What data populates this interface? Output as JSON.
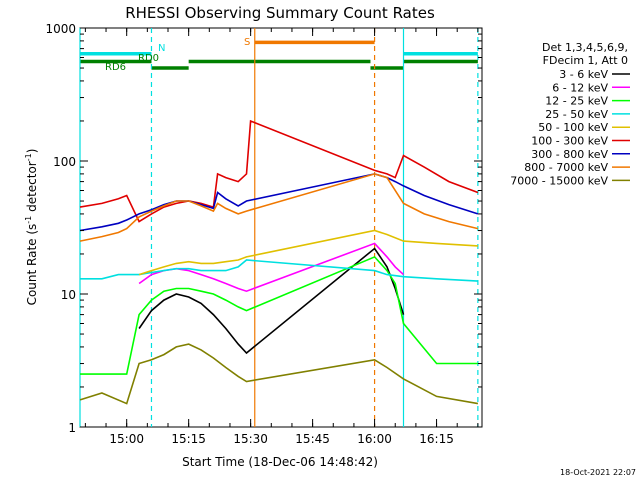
{
  "chart_data": {
    "type": "line",
    "title": "RHESSI Observing Summary Count Rates",
    "xlabel": "Start Time (18-Dec-06 14:48:42)",
    "ylabel_main": "Count Rate (s",
    "ylabel_sup1": "-1",
    "ylabel_mid": " detector",
    "ylabel_sup2": "-1",
    "ylabel_end": ")",
    "footer": "18-Oct-2021 22:07",
    "y_scale": "log",
    "ylim": [
      1,
      1000
    ],
    "xlim": [
      "14:48:42",
      "16:26:00"
    ],
    "y_ticks": [
      {
        "value": 1,
        "label": "1"
      },
      {
        "value": 10,
        "label": "10"
      },
      {
        "value": 100,
        "label": "100"
      },
      {
        "value": 1000,
        "label": "1000"
      }
    ],
    "x_ticks": [
      {
        "time": "15:00",
        "label": "15:00"
      },
      {
        "time": "15:15",
        "label": "15:15"
      },
      {
        "time": "15:30",
        "label": "15:30"
      },
      {
        "time": "15:45",
        "label": "15:45"
      },
      {
        "time": "16:00",
        "label": "16:00"
      },
      {
        "time": "16:15",
        "label": "16:15"
      }
    ],
    "legend_title": [
      "Det 1,3,4,5,6,9,",
      "FDecim 1, Att 0"
    ],
    "legend_placement": "right",
    "annotations": {
      "flag_N": "N",
      "flag_RD0": "RD0",
      "flag_RD6": "RD6",
      "flag_S": "S"
    },
    "vertical_lines": [
      {
        "time": "14:48:42",
        "color": "#00e0e0",
        "style": "solid"
      },
      {
        "time": "15:06",
        "color": "#00e0e0",
        "style": "dashed"
      },
      {
        "time": "15:31",
        "color": "#f07800",
        "style": "solid"
      },
      {
        "time": "16:00",
        "color": "#f07800",
        "style": "dashed"
      },
      {
        "time": "16:07",
        "color": "#00e0e0",
        "style": "solid"
      },
      {
        "time": "16:25",
        "color": "#00e0e0",
        "style": "dashed"
      }
    ],
    "flag_bars": [
      {
        "label": "N",
        "color": "#00e0e0",
        "y": 640,
        "segments": [
          [
            "14:48:42",
            "15:06"
          ],
          [
            "16:07",
            "16:25"
          ]
        ]
      },
      {
        "label": "RD0",
        "color": "#008000",
        "y": 560,
        "segments": [
          [
            "14:48:42",
            "15:06"
          ],
          [
            "15:15",
            "15:59"
          ],
          [
            "16:07",
            "16:25"
          ]
        ]
      },
      {
        "label": "RD6",
        "color": "#008000",
        "y": 500,
        "segments": [
          [
            "15:06",
            "15:15"
          ],
          [
            "15:59",
            "16:07"
          ]
        ]
      },
      {
        "label": "S",
        "color": "#f07800",
        "y": 780,
        "segments": [
          [
            "15:31",
            "16:00"
          ]
        ]
      }
    ],
    "series": [
      {
        "name": "3 - 6 keV",
        "color": "#000000",
        "points": [
          [
            "15:03",
            5.5
          ],
          [
            "15:06",
            7.5
          ],
          [
            "15:09",
            9
          ],
          [
            "15:12",
            10
          ],
          [
            "15:15",
            9.5
          ],
          [
            "15:18",
            8.5
          ],
          [
            "15:21",
            7
          ],
          [
            "15:24",
            5.5
          ],
          [
            "15:27",
            4.2
          ],
          [
            "15:29",
            3.6
          ],
          [
            "16:00",
            22
          ],
          [
            "16:03",
            16
          ],
          [
            "16:05",
            11
          ],
          [
            "16:07",
            7
          ]
        ]
      },
      {
        "name": "6 - 12 keV",
        "color": "#ff00ff",
        "points": [
          [
            "15:03",
            12
          ],
          [
            "15:06",
            14
          ],
          [
            "15:09",
            15
          ],
          [
            "15:12",
            15.5
          ],
          [
            "15:15",
            15
          ],
          [
            "15:18",
            14
          ],
          [
            "15:21",
            13
          ],
          [
            "15:24",
            12
          ],
          [
            "15:27",
            11
          ],
          [
            "15:29",
            10.5
          ],
          [
            "16:00",
            24
          ],
          [
            "16:03",
            19
          ],
          [
            "16:05",
            16
          ],
          [
            "16:07",
            14
          ]
        ]
      },
      {
        "name": "12 - 25 keV",
        "color": "#00ff00",
        "points": [
          [
            "14:48:42",
            2.5
          ],
          [
            "15:00",
            2.5
          ],
          [
            "15:03",
            7
          ],
          [
            "15:06",
            9
          ],
          [
            "15:09",
            10.5
          ],
          [
            "15:12",
            11
          ],
          [
            "15:15",
            11
          ],
          [
            "15:18",
            10.5
          ],
          [
            "15:21",
            10
          ],
          [
            "15:24",
            9
          ],
          [
            "15:27",
            8
          ],
          [
            "15:29",
            7.5
          ],
          [
            "16:00",
            19
          ],
          [
            "16:03",
            15
          ],
          [
            "16:05",
            12
          ],
          [
            "16:07",
            6
          ],
          [
            "16:15",
            3
          ],
          [
            "16:25",
            3
          ]
        ]
      },
      {
        "name": "25 - 50 keV",
        "color": "#00e0e0",
        "points": [
          [
            "14:48:42",
            13
          ],
          [
            "14:54",
            13
          ],
          [
            "14:58",
            14
          ],
          [
            "15:00",
            14
          ],
          [
            "15:03",
            14
          ],
          [
            "15:06",
            14.5
          ],
          [
            "15:09",
            15
          ],
          [
            "15:12",
            15.5
          ],
          [
            "15:15",
            15.5
          ],
          [
            "15:18",
            15
          ],
          [
            "15:21",
            15
          ],
          [
            "15:24",
            15
          ],
          [
            "15:27",
            16
          ],
          [
            "15:29",
            18
          ],
          [
            "16:00",
            15
          ],
          [
            "16:03",
            14
          ],
          [
            "16:07",
            13.5
          ],
          [
            "16:15",
            13
          ],
          [
            "16:25",
            12.5
          ]
        ]
      },
      {
        "name": "50 - 100 keV",
        "color": "#e0c000",
        "points": [
          [
            "15:03",
            14
          ],
          [
            "15:06",
            15
          ],
          [
            "15:09",
            16
          ],
          [
            "15:12",
            17
          ],
          [
            "15:15",
            17.5
          ],
          [
            "15:18",
            17
          ],
          [
            "15:21",
            17
          ],
          [
            "15:24",
            17.5
          ],
          [
            "15:27",
            18
          ],
          [
            "15:29",
            19
          ],
          [
            "16:00",
            30
          ],
          [
            "16:03",
            28
          ],
          [
            "16:07",
            25
          ],
          [
            "16:15",
            24
          ],
          [
            "16:25",
            23
          ]
        ]
      },
      {
        "name": "100 - 300 keV",
        "color": "#e00000",
        "points": [
          [
            "14:48:42",
            45
          ],
          [
            "14:54",
            48
          ],
          [
            "14:58",
            52
          ],
          [
            "15:00",
            55
          ],
          [
            "15:03",
            35
          ],
          [
            "15:06",
            40
          ],
          [
            "15:09",
            45
          ],
          [
            "15:12",
            48
          ],
          [
            "15:15",
            50
          ],
          [
            "15:18",
            48
          ],
          [
            "15:21",
            45
          ],
          [
            "15:22",
            80
          ],
          [
            "15:24",
            75
          ],
          [
            "15:27",
            70
          ],
          [
            "15:29",
            80
          ],
          [
            "15:30",
            200
          ],
          [
            "16:00",
            85
          ],
          [
            "16:03",
            80
          ],
          [
            "16:05",
            75
          ],
          [
            "16:07",
            110
          ],
          [
            "16:12",
            90
          ],
          [
            "16:18",
            70
          ],
          [
            "16:25",
            58
          ]
        ]
      },
      {
        "name": "300 - 800 keV",
        "color": "#0000c0",
        "points": [
          [
            "14:48:42",
            30
          ],
          [
            "14:54",
            32
          ],
          [
            "14:58",
            34
          ],
          [
            "15:00",
            36
          ],
          [
            "15:03",
            40
          ],
          [
            "15:06",
            43
          ],
          [
            "15:09",
            47
          ],
          [
            "15:12",
            50
          ],
          [
            "15:15",
            50
          ],
          [
            "15:18",
            47
          ],
          [
            "15:21",
            44
          ],
          [
            "15:22",
            58
          ],
          [
            "15:24",
            52
          ],
          [
            "15:27",
            46
          ],
          [
            "15:29",
            50
          ],
          [
            "16:00",
            80
          ],
          [
            "16:03",
            75
          ],
          [
            "16:05",
            70
          ],
          [
            "16:07",
            65
          ],
          [
            "16:12",
            55
          ],
          [
            "16:18",
            47
          ],
          [
            "16:25",
            40
          ]
        ]
      },
      {
        "name": "800 - 7000 keV",
        "color": "#f07800",
        "points": [
          [
            "14:48:42",
            25
          ],
          [
            "14:54",
            27
          ],
          [
            "14:58",
            29
          ],
          [
            "15:00",
            31
          ],
          [
            "15:03",
            38
          ],
          [
            "15:06",
            42
          ],
          [
            "15:09",
            46
          ],
          [
            "15:12",
            50
          ],
          [
            "15:15",
            50
          ],
          [
            "15:18",
            46
          ],
          [
            "15:21",
            42
          ],
          [
            "15:22",
            48
          ],
          [
            "15:24",
            44
          ],
          [
            "15:27",
            40
          ],
          [
            "15:29",
            42
          ],
          [
            "16:00",
            80
          ],
          [
            "16:03",
            75
          ],
          [
            "16:07",
            48
          ],
          [
            "16:12",
            40
          ],
          [
            "16:18",
            35
          ],
          [
            "16:25",
            31
          ]
        ]
      },
      {
        "name": "7000 - 15000 keV",
        "color": "#808000",
        "points": [
          [
            "14:48:42",
            1.6
          ],
          [
            "14:54",
            1.8
          ],
          [
            "15:00",
            1.5
          ],
          [
            "15:03",
            3
          ],
          [
            "15:06",
            3.2
          ],
          [
            "15:09",
            3.5
          ],
          [
            "15:12",
            4
          ],
          [
            "15:15",
            4.2
          ],
          [
            "15:18",
            3.8
          ],
          [
            "15:21",
            3.3
          ],
          [
            "15:24",
            2.8
          ],
          [
            "15:27",
            2.4
          ],
          [
            "15:29",
            2.2
          ],
          [
            "16:00",
            3.2
          ],
          [
            "16:03",
            2.8
          ],
          [
            "16:07",
            2.3
          ],
          [
            "16:15",
            1.7
          ],
          [
            "16:25",
            1.5
          ]
        ]
      }
    ]
  }
}
